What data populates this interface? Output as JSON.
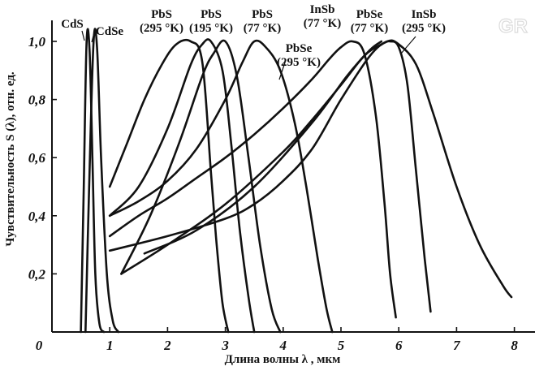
{
  "chart_data": {
    "type": "line",
    "xlabel": "Длина волны  λ , мкм",
    "ylabel": "Чувствительность S (λ), отн. ед.",
    "xlim": [
      0,
      8.3
    ],
    "ylim": [
      0,
      1.05
    ],
    "x_ticks": [
      {
        "value": 0,
        "label": "0"
      },
      {
        "value": 1,
        "label": "1"
      },
      {
        "value": 2,
        "label": "2"
      },
      {
        "value": 3,
        "label": "3"
      },
      {
        "value": 4,
        "label": "4"
      },
      {
        "value": 5,
        "label": "5"
      },
      {
        "value": 6,
        "label": "6"
      },
      {
        "value": 7,
        "label": "7"
      },
      {
        "value": 8,
        "label": "8"
      }
    ],
    "y_ticks": [
      {
        "value": 0.2,
        "label": "0,2"
      },
      {
        "value": 0.4,
        "label": "0,4"
      },
      {
        "value": 0.6,
        "label": "0,6"
      },
      {
        "value": 0.8,
        "label": "0,8"
      },
      {
        "value": 1.0,
        "label": "1,0"
      }
    ],
    "grid": false,
    "watermark": "GR",
    "series": [
      {
        "id": "cds",
        "label_lines": [
          "CdS"
        ],
        "x": [
          0.5,
          0.55,
          0.6,
          0.65,
          0.7,
          0.75,
          0.82,
          0.9
        ],
        "y": [
          0.0,
          0.5,
          1.0,
          0.97,
          0.6,
          0.2,
          0.03,
          0.0
        ]
      },
      {
        "id": "cdse",
        "label_lines": [
          "CdSe"
        ],
        "x": [
          0.58,
          0.65,
          0.72,
          0.78,
          0.85,
          0.95,
          1.05,
          1.15
        ],
        "y": [
          0.0,
          0.55,
          1.0,
          0.98,
          0.6,
          0.2,
          0.04,
          0.0
        ]
      },
      {
        "id": "pbs295",
        "label_lines": [
          "PbS",
          "(295 °K)"
        ],
        "x": [
          1.0,
          1.3,
          1.6,
          1.9,
          2.15,
          2.4,
          2.6,
          2.75,
          2.85,
          2.95,
          3.05
        ],
        "y": [
          0.5,
          0.65,
          0.8,
          0.92,
          0.99,
          1.0,
          0.93,
          0.55,
          0.3,
          0.1,
          0.0
        ]
      },
      {
        "id": "pbs195",
        "label_lines": [
          "PbS",
          "(195 °K)"
        ],
        "x": [
          1.0,
          1.5,
          2.0,
          2.4,
          2.6,
          2.75,
          2.95,
          3.1,
          3.25,
          3.4,
          3.5
        ],
        "y": [
          0.4,
          0.5,
          0.7,
          0.92,
          0.99,
          1.0,
          0.9,
          0.65,
          0.35,
          0.12,
          0.0
        ]
      },
      {
        "id": "pbs77",
        "label_lines": [
          "PbS",
          "(77 °K)"
        ],
        "x": [
          1.2,
          1.7,
          2.2,
          2.6,
          2.8,
          3.0,
          3.2,
          3.4,
          3.6,
          3.8,
          3.95
        ],
        "y": [
          0.2,
          0.4,
          0.65,
          0.88,
          0.96,
          1.0,
          0.88,
          0.6,
          0.3,
          0.08,
          0.0
        ]
      },
      {
        "id": "pbse295",
        "label_lines": [
          "PbSe",
          "(295 °K)"
        ],
        "x": [
          1.0,
          1.5,
          2.0,
          2.5,
          3.0,
          3.3,
          3.5,
          3.7,
          3.95,
          4.2,
          4.4,
          4.6,
          4.75,
          4.85
        ],
        "y": [
          0.4,
          0.45,
          0.52,
          0.63,
          0.8,
          0.93,
          1.0,
          0.98,
          0.9,
          0.72,
          0.5,
          0.25,
          0.08,
          0.0
        ]
      },
      {
        "id": "insb77",
        "label_lines": [
          "InSb",
          "(77 °K)"
        ],
        "x": [
          1.0,
          1.5,
          2.0,
          2.5,
          3.0,
          3.5,
          4.0,
          4.5,
          4.8,
          5.0,
          5.2,
          5.4,
          5.6,
          5.75,
          5.85,
          5.95
        ],
        "y": [
          0.33,
          0.4,
          0.46,
          0.53,
          0.6,
          0.68,
          0.77,
          0.87,
          0.94,
          0.98,
          1.0,
          0.96,
          0.75,
          0.45,
          0.2,
          0.05
        ]
      },
      {
        "id": "pbse77",
        "label_lines": [
          "PbSe",
          "(77 °K)"
        ],
        "x": [
          1.2,
          2.0,
          3.0,
          4.0,
          4.5,
          5.0,
          5.4,
          5.7,
          5.85,
          6.0,
          6.15,
          6.3,
          6.45,
          6.55
        ],
        "y": [
          0.2,
          0.3,
          0.44,
          0.62,
          0.73,
          0.85,
          0.95,
          0.99,
          1.0,
          0.98,
          0.85,
          0.55,
          0.25,
          0.07
        ]
      },
      {
        "id": "insb295",
        "label_lines": [
          "InSb",
          "(295 °K)"
        ],
        "x": [
          1.0,
          2.0,
          3.0,
          3.5,
          4.0,
          4.5,
          5.0,
          5.5,
          5.8,
          6.0,
          6.3,
          6.6,
          7.0,
          7.4,
          7.8,
          7.95
        ],
        "y": [
          0.28,
          0.33,
          0.39,
          0.44,
          0.52,
          0.63,
          0.8,
          0.95,
          1.0,
          0.99,
          0.92,
          0.75,
          0.5,
          0.3,
          0.16,
          0.12
        ]
      },
      {
        "id": "extra1",
        "label_lines": [],
        "x": [
          1.6,
          2.5,
          3.5,
          4.5,
          5.1,
          5.5,
          5.7
        ],
        "y": [
          0.27,
          0.35,
          0.5,
          0.72,
          0.88,
          0.97,
          1.0
        ]
      }
    ],
    "labels": [
      {
        "series": "cds",
        "lines": [
          "CdS"
        ]
      },
      {
        "series": "cdse",
        "lines": [
          "CdSe"
        ]
      },
      {
        "series": "pbs295",
        "lines": [
          "PbS",
          "(295 °K)"
        ]
      },
      {
        "series": "pbs195",
        "lines": [
          "PbS",
          "(195 °K)"
        ]
      },
      {
        "series": "pbs77",
        "lines": [
          "PbS",
          "(77 °K)"
        ]
      },
      {
        "series": "pbse295",
        "lines": [
          "PbSe",
          "(295 °K)"
        ]
      },
      {
        "series": "insb77",
        "lines": [
          "InSb",
          "(77 °K)"
        ]
      },
      {
        "series": "pbse77",
        "lines": [
          "PbSe",
          "(77 °K)"
        ]
      },
      {
        "series": "insb295",
        "lines": [
          "InSb",
          "(295 °K)"
        ]
      }
    ]
  }
}
